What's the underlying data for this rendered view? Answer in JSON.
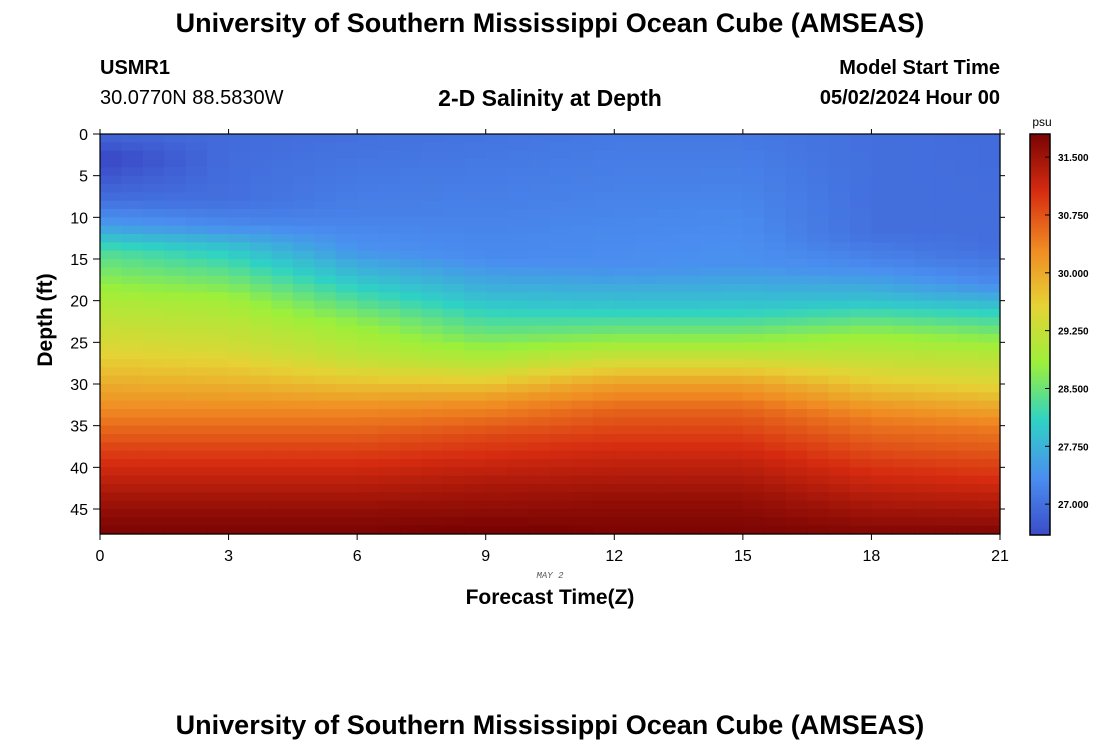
{
  "header": {
    "title": "University of Southern Mississippi Ocean Cube (AMSEAS)",
    "station_id": "USMR1",
    "station_coords": "30.0770N  88.5830W",
    "subtitle": "2-D Salinity at Depth",
    "model_start_label": "Model Start Time",
    "model_start_value": "05/02/2024 Hour 00"
  },
  "footer": {
    "title_repeat": "University of Southern Mississippi Ocean Cube (AMSEAS)"
  },
  "chart_data": {
    "type": "heatmap",
    "title": "2-D Salinity at Depth",
    "xlabel": "Forecast Time(Z)",
    "ylabel": "Depth (ft)",
    "date_label": "MAY 2",
    "xlim": [
      0,
      21
    ],
    "ylim": [
      0,
      48
    ],
    "x_ticks": [
      "0",
      "3",
      "6",
      "9",
      "12",
      "15",
      "18",
      "21"
    ],
    "y_ticks": [
      "0",
      "5",
      "10",
      "15",
      "20",
      "25",
      "30",
      "35",
      "40",
      "45"
    ],
    "colorbar": {
      "unit": "psu",
      "range": [
        26.6,
        31.8
      ],
      "ticks": [
        "27.000",
        "27.750",
        "28.500",
        "29.250",
        "30.000",
        "30.750",
        "31.500"
      ],
      "colors": [
        "#3b4cc8",
        "#4a8ef0",
        "#2fd2c4",
        "#9cf03a",
        "#e6d235",
        "#f08a22",
        "#d62b10",
        "#7a0403"
      ]
    },
    "time_columns": 42,
    "depth_rows": 48,
    "profiles": [
      {
        "time": 0,
        "depths": [
          0,
          3,
          8,
          11,
          14,
          20,
          26,
          33,
          38,
          45,
          48
        ],
        "values": [
          26.9,
          26.5,
          27.0,
          27.5,
          28.3,
          29.0,
          29.5,
          30.3,
          30.9,
          31.6,
          31.8
        ]
      },
      {
        "time": 3,
        "depths": [
          0,
          8,
          11,
          14,
          20,
          26,
          33,
          38,
          45,
          48
        ],
        "values": [
          26.95,
          27.0,
          27.3,
          28.0,
          28.9,
          29.4,
          30.3,
          30.9,
          31.6,
          31.8
        ]
      },
      {
        "time": 6,
        "depths": [
          0,
          10,
          14,
          18,
          23,
          27,
          33,
          38,
          45,
          48
        ],
        "values": [
          27.0,
          27.2,
          27.4,
          28.0,
          28.8,
          29.2,
          30.3,
          30.9,
          31.6,
          31.8
        ]
      },
      {
        "time": 9,
        "depths": [
          0,
          15,
          20,
          24,
          28,
          32,
          36,
          42,
          48
        ],
        "values": [
          27.05,
          27.3,
          27.9,
          28.5,
          29.2,
          30.2,
          30.8,
          31.4,
          31.85
        ]
      },
      {
        "time": 12,
        "depths": [
          0,
          16,
          21,
          24,
          27,
          30,
          33,
          38,
          44,
          48
        ],
        "values": [
          27.1,
          27.35,
          28.0,
          28.6,
          29.3,
          30.1,
          30.6,
          31.1,
          31.6,
          31.8
        ]
      },
      {
        "time": 15,
        "depths": [
          0,
          16,
          21,
          24,
          27,
          30,
          33,
          38,
          44,
          48
        ],
        "values": [
          27.1,
          27.4,
          28.0,
          28.6,
          29.3,
          30.1,
          30.6,
          31.1,
          31.6,
          31.8
        ]
      },
      {
        "time": 18,
        "depths": [
          0,
          12,
          16,
          20,
          24,
          29,
          34,
          40,
          48
        ],
        "values": [
          27.0,
          27.0,
          27.3,
          27.9,
          28.8,
          29.5,
          30.4,
          31.0,
          31.75
        ]
      },
      {
        "time": 21,
        "depths": [
          0,
          14,
          18,
          22,
          26,
          30,
          35,
          42,
          48
        ],
        "values": [
          26.95,
          27.0,
          27.3,
          28.2,
          29.0,
          29.5,
          30.4,
          31.1,
          31.75
        ]
      }
    ]
  }
}
